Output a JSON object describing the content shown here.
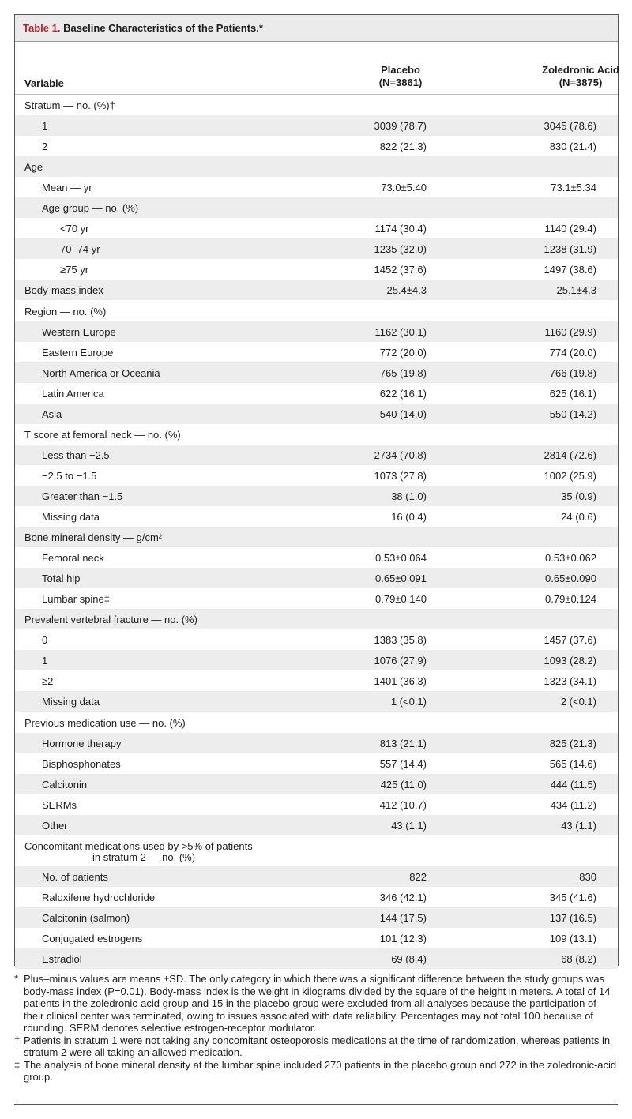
{
  "table": {
    "label": "Table 1.",
    "title": "Baseline Characteristics of the Patients.*",
    "columns": {
      "variable": "Variable",
      "placebo_line1": "Placebo",
      "placebo_line2": "(N=3861)",
      "zol_line1": "Zoledronic Acid",
      "zol_line2": "(N=3875)"
    },
    "rows": [
      {
        "label": "Stratum — no. (%)†",
        "indent": 0,
        "placebo": "",
        "zol": ""
      },
      {
        "label": "1",
        "indent": 1,
        "placebo": "3039 (78.7)",
        "zol": "3045 (78.6)"
      },
      {
        "label": "2",
        "indent": 1,
        "placebo": "822 (21.3)",
        "zol": "830 (21.4)"
      },
      {
        "label": "Age",
        "indent": 0,
        "placebo": "",
        "zol": ""
      },
      {
        "label": "Mean — yr",
        "indent": 1,
        "placebo": "73.0±5.40",
        "zol": "73.1±5.34"
      },
      {
        "label": "Age group — no. (%)",
        "indent": 1,
        "placebo": "",
        "zol": ""
      },
      {
        "label": "<70 yr",
        "indent": 2,
        "placebo": "1174 (30.4)",
        "zol": "1140 (29.4)"
      },
      {
        "label": "70–74 yr",
        "indent": 2,
        "placebo": "1235 (32.0)",
        "zol": "1238 (31.9)"
      },
      {
        "label": "≥75 yr",
        "indent": 2,
        "placebo": "1452 (37.6)",
        "zol": "1497 (38.6)"
      },
      {
        "label": "Body-mass index",
        "indent": 0,
        "placebo": "25.4±4.3",
        "zol": "25.1±4.3"
      },
      {
        "label": "Region — no. (%)",
        "indent": 0,
        "placebo": "",
        "zol": ""
      },
      {
        "label": "Western Europe",
        "indent": 1,
        "placebo": "1162 (30.1)",
        "zol": "1160 (29.9)"
      },
      {
        "label": "Eastern Europe",
        "indent": 1,
        "placebo": "772 (20.0)",
        "zol": "774 (20.0)"
      },
      {
        "label": "North America or Oceania",
        "indent": 1,
        "placebo": "765 (19.8)",
        "zol": "766 (19.8)"
      },
      {
        "label": "Latin America",
        "indent": 1,
        "placebo": "622 (16.1)",
        "zol": "625 (16.1)"
      },
      {
        "label": "Asia",
        "indent": 1,
        "placebo": "540 (14.0)",
        "zol": "550 (14.2)"
      },
      {
        "label": "T score at femoral neck — no. (%)",
        "indent": 0,
        "placebo": "",
        "zol": ""
      },
      {
        "label": "Less than −2.5",
        "indent": 1,
        "placebo": "2734 (70.8)",
        "zol": "2814 (72.6)"
      },
      {
        "label": "−2.5 to −1.5",
        "indent": 1,
        "placebo": "1073 (27.8)",
        "zol": "1002 (25.9)"
      },
      {
        "label": "Greater than −1.5",
        "indent": 1,
        "placebo": "38 (1.0)",
        "zol": "35 (0.9)"
      },
      {
        "label": "Missing data",
        "indent": 1,
        "placebo": "16 (0.4)",
        "zol": "24 (0.6)"
      },
      {
        "label": "Bone mineral density — g/cm²",
        "indent": 0,
        "placebo": "",
        "zol": ""
      },
      {
        "label": "Femoral neck",
        "indent": 1,
        "placebo": "0.53±0.064",
        "zol": "0.53±0.062"
      },
      {
        "label": "Total hip",
        "indent": 1,
        "placebo": "0.65±0.091",
        "zol": "0.65±0.090"
      },
      {
        "label": "Lumbar spine‡",
        "indent": 1,
        "placebo": "0.79±0.140",
        "zol": "0.79±0.124"
      },
      {
        "label": "Prevalent vertebral fracture — no. (%)",
        "indent": 0,
        "placebo": "",
        "zol": ""
      },
      {
        "label": "0",
        "indent": 1,
        "placebo": "1383 (35.8)",
        "zol": "1457 (37.6)"
      },
      {
        "label": "1",
        "indent": 1,
        "placebo": "1076 (27.9)",
        "zol": "1093 (28.2)"
      },
      {
        "label": "≥2",
        "indent": 1,
        "placebo": "1401 (36.3)",
        "zol": "1323 (34.1)"
      },
      {
        "label": "Missing data",
        "indent": 1,
        "placebo": "1 (<0.1)",
        "zol": "2 (<0.1)"
      },
      {
        "label": "Previous medication use — no. (%)",
        "indent": 0,
        "placebo": "",
        "zol": ""
      },
      {
        "label": "Hormone therapy",
        "indent": 1,
        "placebo": "813 (21.1)",
        "zol": "825 (21.3)"
      },
      {
        "label": "Bisphosphonates",
        "indent": 1,
        "placebo": "557 (14.4)",
        "zol": "565 (14.6)"
      },
      {
        "label": "Calcitonin",
        "indent": 1,
        "placebo": "425 (11.0)",
        "zol": "444 (11.5)"
      },
      {
        "label": "SERMs",
        "indent": 1,
        "placebo": "412 (10.7)",
        "zol": "434 (11.2)"
      },
      {
        "label": "Other",
        "indent": 1,
        "placebo": "43 (1.1)",
        "zol": "43 (1.1)"
      },
      {
        "label": "Concomitant medications used by >5% of patients",
        "label2": "in stratum 2 — no. (%)",
        "indent": 0,
        "placebo": "",
        "zol": ""
      },
      {
        "label": "No. of patients",
        "indent": 1,
        "placebo": "822",
        "zol": "830"
      },
      {
        "label": "Raloxifene hydrochloride",
        "indent": 1,
        "placebo": "346 (42.1)",
        "zol": "345 (41.6)"
      },
      {
        "label": "Calcitonin (salmon)",
        "indent": 1,
        "placebo": "144 (17.5)",
        "zol": "137 (16.5)"
      },
      {
        "label": "Conjugated estrogens",
        "indent": 1,
        "placebo": "101 (12.3)",
        "zol": "109 (13.1)"
      },
      {
        "label": "Estradiol",
        "indent": 1,
        "placebo": "69 (8.4)",
        "zol": "68 (8.2)"
      }
    ]
  },
  "footnotes": [
    {
      "symbol": "*",
      "text": "Plus–minus values are means ±SD. The only category in which there was a significant difference between the study groups was body-mass index (P=0.01). Body-mass index is the weight in kilograms divided by the square of the height in meters. A total of 14 patients in the zoledronic-acid group and 15 in the placebo group were excluded from all analyses because the participation of their clinical center was terminated, owing to issues associated with data reliability. Percentages may not total 100 because of rounding. SERM denotes selective estrogen-receptor modulator."
    },
    {
      "symbol": "†",
      "text": "Patients in stratum 1 were not taking any concomitant osteoporosis medications at the time of randomization, whereas patients in stratum 2 were all taking an allowed medication."
    },
    {
      "symbol": "‡",
      "text": "The analysis of bone mineral density at the lumbar spine included 270 patients in the placebo group and 272 in the zoledronic-acid group."
    }
  ]
}
